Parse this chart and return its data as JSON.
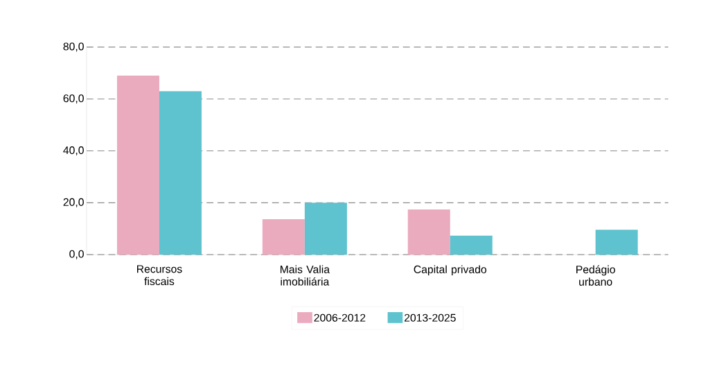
{
  "chart_data": {
    "type": "bar",
    "categories": [
      "Recursos fiscais",
      "Mais Valia imobiliária",
      "Capital privado",
      "Pedágio urbano"
    ],
    "series": [
      {
        "name": "2006-2012",
        "color": "#ebabbf",
        "values": [
          69,
          13.7,
          17.4,
          null
        ]
      },
      {
        "name": "2013-2025",
        "color": "#5ec3cf",
        "values": [
          63,
          20,
          7.3,
          9.6
        ]
      }
    ],
    "ylim": [
      0,
      80
    ],
    "yticks": [
      {
        "value": 0,
        "label": "0,0"
      },
      {
        "value": 20,
        "label": "20,0"
      },
      {
        "value": 40,
        "label": "40,0"
      },
      {
        "value": 60,
        "label": "60,0"
      },
      {
        "value": 80,
        "label": "80,0"
      }
    ],
    "grid": "y",
    "legend": "bottom"
  }
}
